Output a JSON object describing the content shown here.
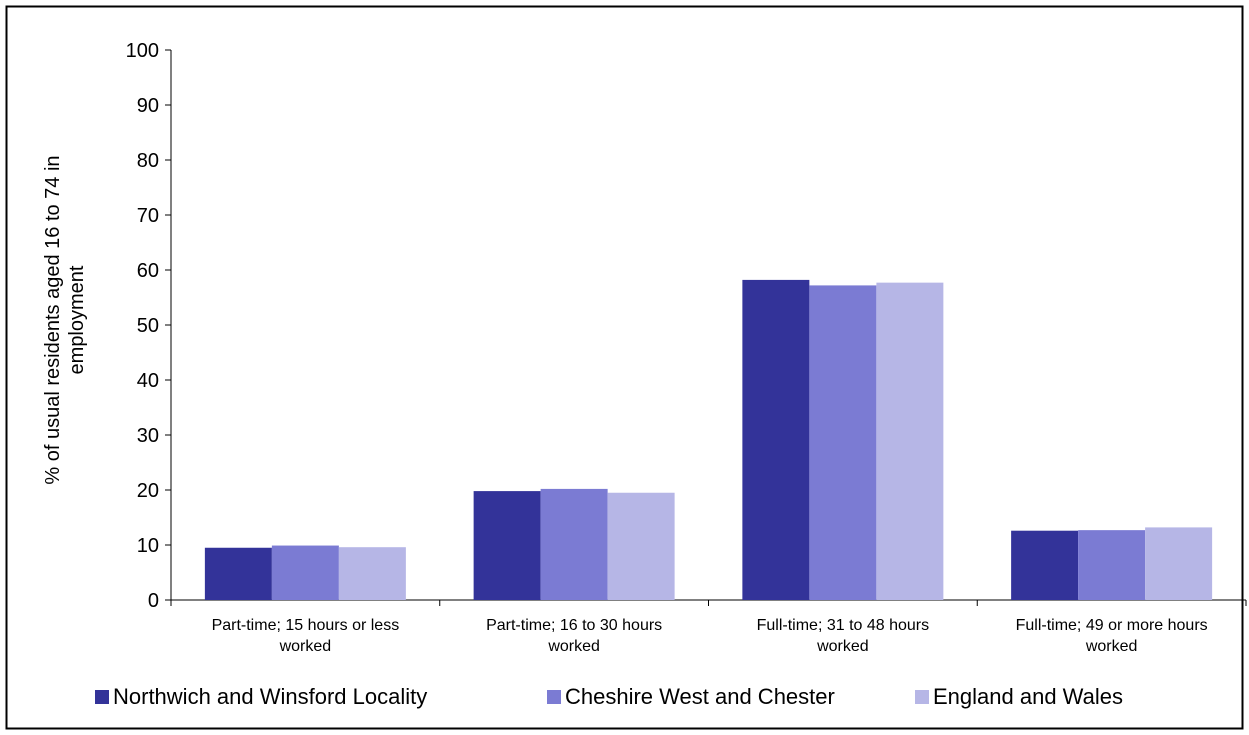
{
  "chart_data": {
    "type": "bar",
    "title": "",
    "xlabel": "",
    "ylabel": "% of usual residents aged 16 to 74 in employment",
    "ylabel_lines": [
      "% of usual residents aged 16 to 74 in",
      "employment"
    ],
    "ylim": [
      0,
      100
    ],
    "yticks": [
      0,
      10,
      20,
      30,
      40,
      50,
      60,
      70,
      80,
      90,
      100
    ],
    "categories": [
      "Part-time; 15 hours or less worked",
      "Part-time; 16 to 30 hours worked",
      "Full-time; 31 to 48 hours worked",
      "Full-time; 49 or more hours worked"
    ],
    "category_lines": [
      [
        "Part-time; 15 hours or less",
        "worked"
      ],
      [
        "Part-time; 16 to 30 hours",
        "worked"
      ],
      [
        "Full-time; 31 to 48 hours",
        "worked"
      ],
      [
        "Full-time; 49 or more hours",
        "worked"
      ]
    ],
    "series": [
      {
        "name": "Northwich and Winsford Locality",
        "color": "#333399",
        "values": [
          9.5,
          19.8,
          58.2,
          12.6
        ]
      },
      {
        "name": "Cheshire West and Chester",
        "color": "#7B7BD3",
        "values": [
          9.9,
          20.2,
          57.2,
          12.7
        ]
      },
      {
        "name": "England and Wales",
        "color": "#B6B6E6",
        "values": [
          9.6,
          19.5,
          57.7,
          13.2
        ]
      }
    ],
    "grid": false,
    "legend_position": "bottom"
  }
}
